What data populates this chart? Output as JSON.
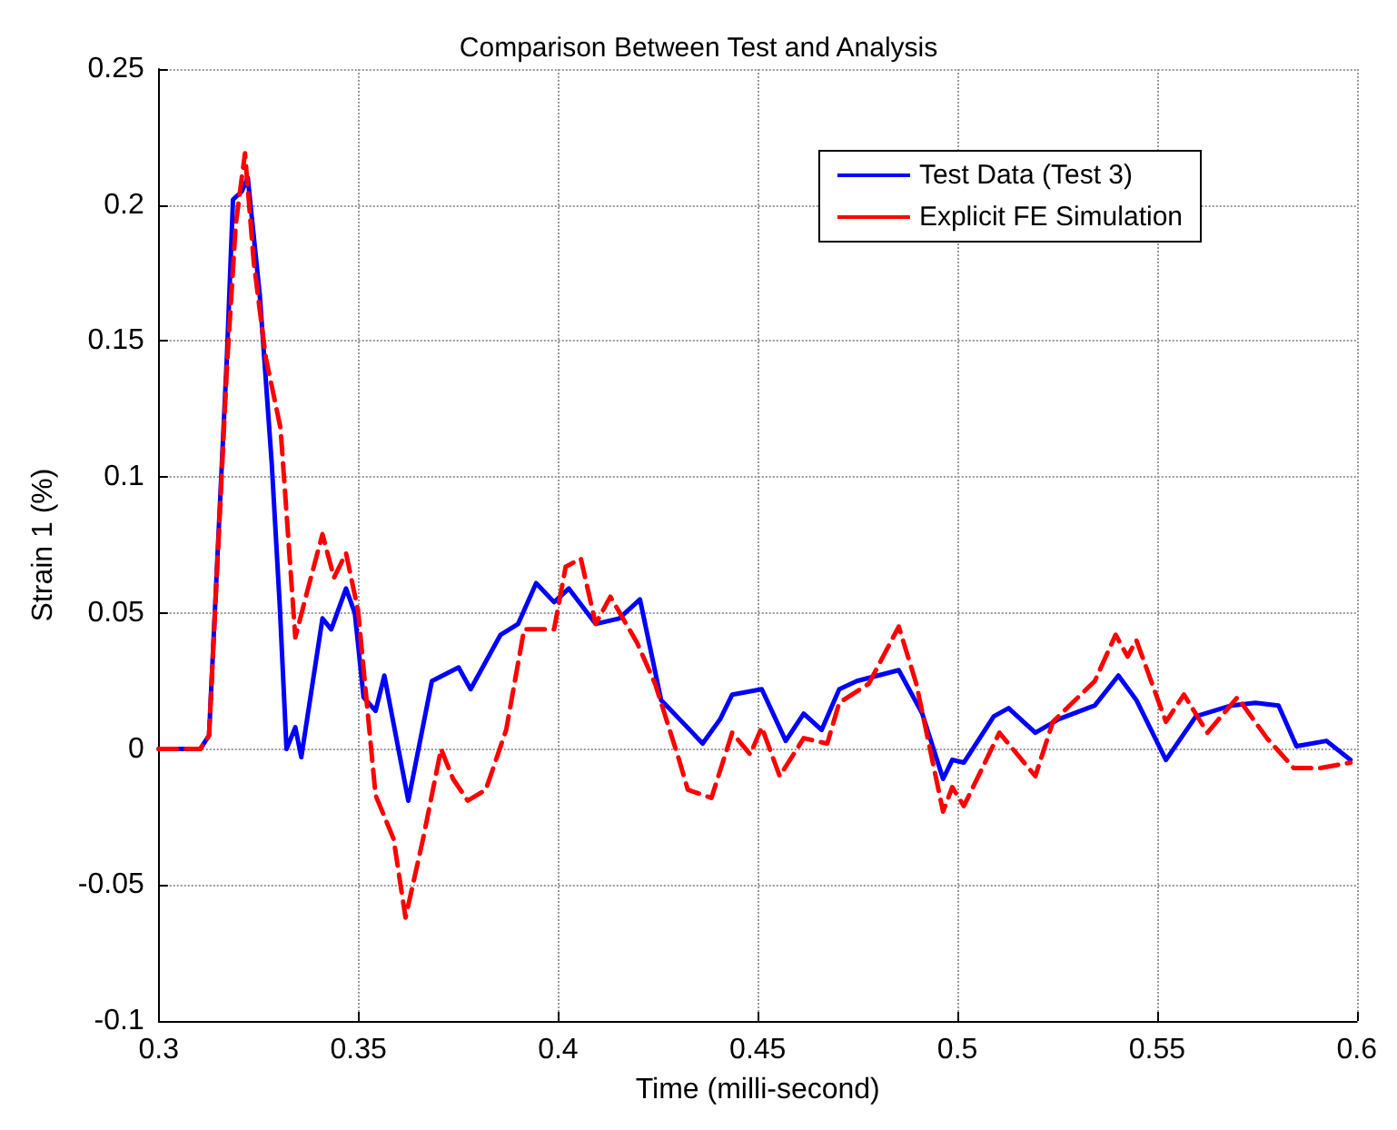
{
  "chart_data": {
    "type": "line",
    "title": "Comparison Between Test and Analysis",
    "xlabel": "Time (milli-second)",
    "ylabel": "Strain 1 (%)",
    "xlim": [
      0.3,
      0.6
    ],
    "xticks": [
      0.3,
      0.35,
      0.4,
      0.45,
      0.5,
      0.55,
      0.6
    ],
    "ylim": [
      -0.1,
      0.25
    ],
    "yticks": [
      -0.1,
      -0.05,
      0,
      0.05,
      0.1,
      0.15,
      0.2,
      0.25
    ],
    "grid": true,
    "legend": "top right",
    "marker": "none",
    "series": [
      {
        "name": "Test Data (Test 3)",
        "color": "#0000ff",
        "line_style": "solid",
        "x": [
          0.3,
          0.3104,
          0.3126,
          0.3171,
          0.3186,
          0.3208,
          0.3223,
          0.3253,
          0.3283,
          0.3303,
          0.332,
          0.3342,
          0.3357,
          0.341,
          0.3432,
          0.3469,
          0.3491,
          0.3513,
          0.3543,
          0.3565,
          0.3625,
          0.3684,
          0.3751,
          0.3781,
          0.3856,
          0.39,
          0.3945,
          0.399,
          0.4027,
          0.4094,
          0.4153,
          0.4205,
          0.4258,
          0.4317,
          0.4362,
          0.4406,
          0.4436,
          0.451,
          0.457,
          0.4615,
          0.466,
          0.4704,
          0.4748,
          0.4853,
          0.4912,
          0.4964,
          0.4987,
          0.5016,
          0.5091,
          0.5128,
          0.5195,
          0.5254,
          0.5344,
          0.5403,
          0.5448,
          0.5522,
          0.5597,
          0.5686,
          0.5746,
          0.5804,
          0.5849,
          0.5924,
          0.5984
        ],
        "values": [
          0,
          0,
          0.005,
          0.145,
          0.202,
          0.205,
          0.21,
          0.167,
          0.105,
          0.053,
          0,
          0.008,
          -0.003,
          0.048,
          0.044,
          0.059,
          0.05,
          0.019,
          0.014,
          0.027,
          -0.019,
          0.025,
          0.03,
          0.022,
          0.042,
          0.046,
          0.061,
          0.054,
          0.059,
          0.046,
          0.048,
          0.055,
          0.018,
          0.009,
          0.002,
          0.011,
          0.02,
          0.022,
          0.003,
          0.013,
          0.007,
          0.022,
          0.025,
          0.029,
          0.013,
          -0.011,
          -0.004,
          -0.005,
          0.012,
          0.015,
          0.006,
          0.011,
          0.016,
          0.027,
          0.018,
          -0.004,
          0.012,
          0.016,
          0.017,
          0.016,
          0.001,
          0.003,
          -0.004
        ]
      },
      {
        "name": "Explicit FE Simulation",
        "color": "#ff0000",
        "line_style": "dashed",
        "x": [
          0.3,
          0.3104,
          0.3126,
          0.3171,
          0.3193,
          0.3216,
          0.3238,
          0.3268,
          0.3305,
          0.3342,
          0.3372,
          0.341,
          0.3439,
          0.3469,
          0.3499,
          0.3543,
          0.3588,
          0.3618,
          0.3662,
          0.3707,
          0.3737,
          0.3774,
          0.3819,
          0.387,
          0.3915,
          0.399,
          0.4019,
          0.4057,
          0.4094,
          0.4131,
          0.4198,
          0.4243,
          0.4303,
          0.4325,
          0.4384,
          0.4436,
          0.4481,
          0.451,
          0.4555,
          0.4615,
          0.4674,
          0.4704,
          0.4778,
          0.4853,
          0.4897,
          0.4964,
          0.4987,
          0.5016,
          0.5105,
          0.5195,
          0.5239,
          0.5344,
          0.5396,
          0.5426,
          0.5448,
          0.5522,
          0.5567,
          0.5626,
          0.5701,
          0.5775,
          0.5842,
          0.5909,
          0.5984
        ],
        "values": [
          0,
          0,
          0.005,
          0.141,
          0.193,
          0.219,
          0.179,
          0.144,
          0.118,
          0.041,
          0.058,
          0.079,
          0.063,
          0.072,
          0.051,
          -0.017,
          -0.033,
          -0.062,
          -0.033,
          0,
          -0.011,
          -0.019,
          -0.015,
          0.007,
          0.044,
          0.044,
          0.067,
          0.07,
          0.046,
          0.056,
          0.039,
          0.024,
          -0.004,
          -0.015,
          -0.018,
          0.006,
          -0.002,
          0.008,
          -0.01,
          0.004,
          0.002,
          0.017,
          0.024,
          0.045,
          0.024,
          -0.023,
          -0.014,
          -0.021,
          0.006,
          -0.01,
          0.01,
          0.025,
          0.042,
          0.034,
          0.04,
          0.01,
          0.02,
          0.006,
          0.019,
          0.004,
          -0.007,
          -0.007,
          -0.005
        ]
      }
    ]
  }
}
